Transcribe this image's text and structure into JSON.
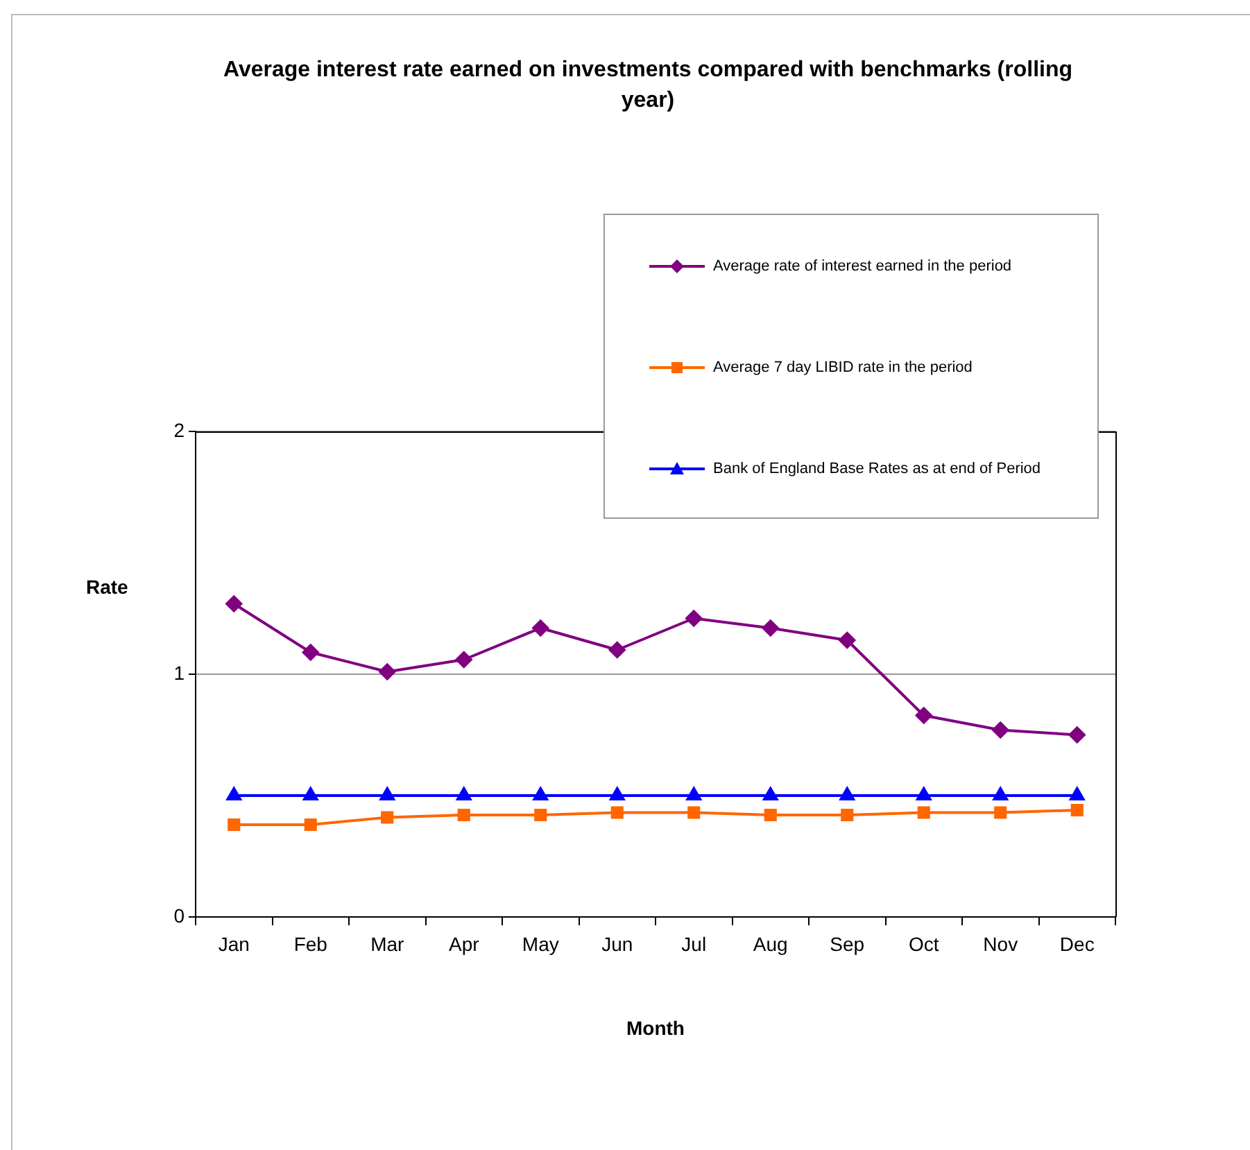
{
  "chart_data": {
    "type": "line",
    "title": "Average interest rate earned on investments compared with benchmarks (rolling year)",
    "xlabel": "Month",
    "ylabel": "Rate",
    "categories": [
      "Jan",
      "Feb",
      "Mar",
      "Apr",
      "May",
      "Jun",
      "Jul",
      "Aug",
      "Sep",
      "Oct",
      "Nov",
      "Dec"
    ],
    "series": [
      {
        "name": "Average rate of interest earned in the period",
        "color": "#800080",
        "marker": "diamond",
        "values": [
          1.29,
          1.09,
          1.01,
          1.06,
          1.19,
          1.1,
          1.23,
          1.19,
          1.14,
          0.83,
          0.77,
          0.75
        ]
      },
      {
        "name": "Average 7 day LIBID rate in the period",
        "color": "#ff6600",
        "marker": "square",
        "values": [
          0.38,
          0.38,
          0.41,
          0.42,
          0.42,
          0.43,
          0.43,
          0.42,
          0.42,
          0.43,
          0.43,
          0.44
        ]
      },
      {
        "name": "Bank of England Base Rates as at end of Period",
        "color": "#0000ff",
        "marker": "triangle",
        "values": [
          0.5,
          0.5,
          0.5,
          0.5,
          0.5,
          0.5,
          0.5,
          0.5,
          0.5,
          0.5,
          0.5,
          0.5
        ]
      }
    ],
    "ylim": [
      0,
      2
    ],
    "yticks": [
      0,
      1,
      2
    ],
    "grid": "y",
    "legend": "top right",
    "line_style": "solid"
  }
}
